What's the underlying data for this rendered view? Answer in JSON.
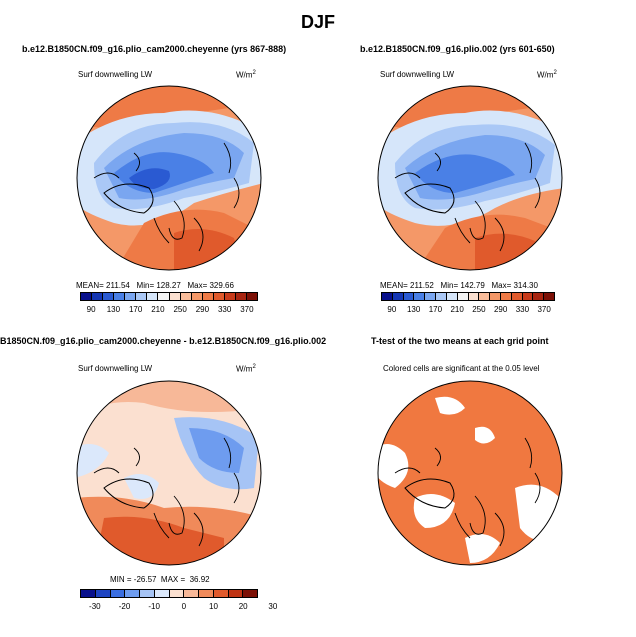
{
  "title": "DJF",
  "panels": [
    {
      "title": "b.e12.B1850CN.f09_g16.plio_cam2000.cheyenne (yrs 867-888)",
      "variable": "Surf downwelling LW",
      "units_base": "W/m",
      "units_exp": "2",
      "stats": "MEAN= 211.54   Min= 128.27   Max= 329.66",
      "colorbar_labels": [
        "90",
        "130",
        "170",
        "210",
        "250",
        "290",
        "330",
        "370"
      ]
    },
    {
      "title": "b.e12.B1850CN.f09_g16.plio.002 (yrs 601-650)",
      "variable": "Surf downwelling LW",
      "units_base": "W/m",
      "units_exp": "2",
      "stats": "MEAN= 211.52   Min= 142.79   Max= 314.30",
      "colorbar_labels": [
        "90",
        "130",
        "170",
        "210",
        "250",
        "290",
        "330",
        "370"
      ]
    },
    {
      "title": "B1850CN.f09_g16.plio_cam2000.cheyenne - b.e12.B1850CN.f09_g16.plio.002",
      "variable": "Surf downwelling LW",
      "units_base": "W/m",
      "units_exp": "2",
      "stats": "MIN = -26.57  MAX =  36.92",
      "colorbar_labels": [
        "-30",
        "-20",
        "-10",
        "0",
        "10",
        "20",
        "30"
      ]
    },
    {
      "title": "T-test of the two means at each grid point",
      "note": "Colored cells are significant at the 0.05 level"
    }
  ],
  "colors": {
    "abs_scale": [
      "#08108c",
      "#1436b4",
      "#2a5ad2",
      "#4a80e6",
      "#7aa6f0",
      "#aac8f6",
      "#d6e6fa",
      "#f4f4f4",
      "#fbe0d0",
      "#f8bc9a",
      "#f49868",
      "#ee7a46",
      "#e05a2c",
      "#c83a1a",
      "#a82410",
      "#7c1006"
    ],
    "diff_scale": [
      "#08108c",
      "#1e44c2",
      "#3a6ee0",
      "#6e9cef",
      "#a6c4f5",
      "#dbe8fb",
      "#fbe0d0",
      "#f7b898",
      "#f08a5a",
      "#e05a2c",
      "#c03414",
      "#7c1006"
    ],
    "ttest": "#f07840"
  }
}
